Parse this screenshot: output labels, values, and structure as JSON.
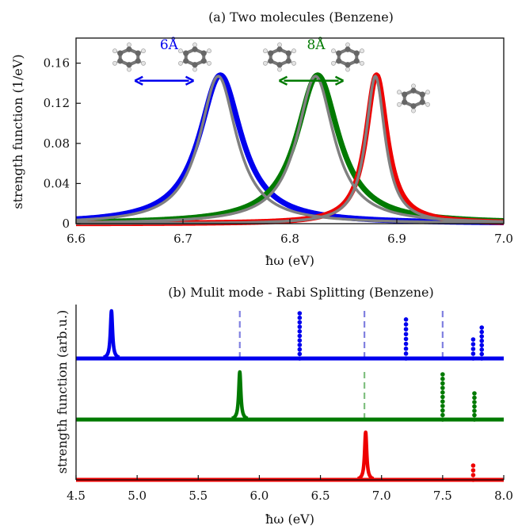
{
  "chart_data": [
    {
      "type": "line",
      "title": "(a) Two molecules (Benzene)",
      "xlabel": "ħω (eV)",
      "ylabel": "strength function (1/eV)",
      "xlim": [
        6.6,
        7.0
      ],
      "ylim": [
        0,
        0.185
      ],
      "xticks": [
        "6.6",
        "6.7",
        "6.8",
        "6.9",
        "7.0"
      ],
      "yticks": [
        "0",
        "0.04",
        "0.08",
        "0.12",
        "0.16"
      ],
      "series": [
        {
          "color": "#0000ee",
          "center": 6.735,
          "peak": 0.148,
          "hwhm": 0.024
        },
        {
          "color": "#007a00",
          "center": 6.826,
          "peak": 0.148,
          "hwhm": 0.024
        },
        {
          "color": "#ee0000",
          "center": 6.881,
          "peak": 0.148,
          "hwhm": 0.012
        }
      ],
      "overlay_color": "#808080",
      "overlay": [
        {
          "center": 6.733,
          "peak": 0.147,
          "hwhm": 0.021
        },
        {
          "center": 6.824,
          "peak": 0.147,
          "hwhm": 0.021
        },
        {
          "center": 6.88,
          "peak": 0.147,
          "hwhm": 0.011
        }
      ],
      "annotations": [
        {
          "text": "6Å",
          "color": "#0000ee",
          "arrow_x": [
            6.655,
            6.71
          ],
          "y": 0.152
        },
        {
          "text": "8Å",
          "color": "#007a00",
          "arrow_x": [
            6.79,
            6.85
          ],
          "y": 0.152
        }
      ]
    },
    {
      "type": "scatter",
      "title": "(b) Mulit mode - Rabi Splitting (Benzene)",
      "xlabel": "ħω (eV)",
      "ylabel": "strength function (arb.u.)",
      "xlim": [
        4.5,
        8.0
      ],
      "xticks": [
        "4.5",
        "5.0",
        "5.5",
        "6.0",
        "6.5",
        "7.0",
        "7.5",
        "8.0"
      ],
      "grid": false,
      "series": [
        {
          "color": "#0000ee",
          "peaks": [
            {
              "x": 4.79,
              "h": 1.0
            }
          ],
          "dot_stacks": [
            {
              "x": 6.33,
              "h": 0.95
            },
            {
              "x": 7.2,
              "h": 0.82
            },
            {
              "x": 7.75,
              "h": 0.4
            },
            {
              "x": 7.82,
              "h": 0.65
            }
          ],
          "dashed_lines": [
            5.84,
            6.86,
            7.5
          ],
          "dash_color": "#8080e0"
        },
        {
          "color": "#007a00",
          "peaks": [
            {
              "x": 5.84,
              "h": 1.0
            }
          ],
          "dot_stacks": [
            {
              "x": 7.5,
              "h": 0.95
            },
            {
              "x": 7.76,
              "h": 0.55
            }
          ],
          "dashed_lines": [
            6.86
          ],
          "dash_color": "#80c080"
        },
        {
          "color": "#ee0000",
          "peaks": [
            {
              "x": 6.87,
              "h": 1.0
            }
          ],
          "dot_stacks": [
            {
              "x": 7.75,
              "h": 0.3
            }
          ],
          "dashed_lines": [],
          "dash_color": "#e08080"
        }
      ]
    }
  ]
}
